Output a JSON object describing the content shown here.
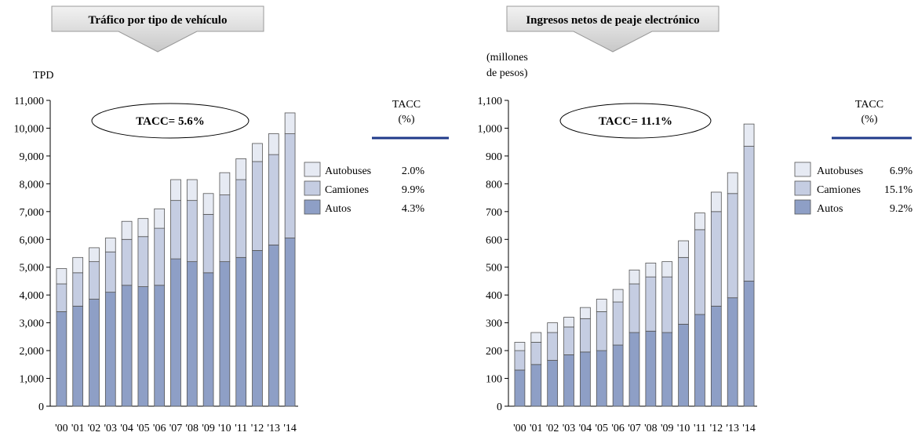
{
  "colors": {
    "autos": "#8e9fc6",
    "camiones": "#c5cde2",
    "autobuses": "#e6eaf3",
    "rule": "#1f3a8a",
    "banner_top": "#f2f2f2",
    "banner_bottom": "#c8c8c8"
  },
  "chart_data": [
    {
      "type": "bar",
      "stacked": true,
      "title": "Tráfico por tipo de vehículo",
      "ylabel": "TPD",
      "ylim": [
        0,
        11000
      ],
      "yticks": [
        "0",
        "1,000",
        "2,000",
        "3,000",
        "4,000",
        "5,000",
        "6,000",
        "7,000",
        "8,000",
        "9,000",
        "10,000",
        "11,000"
      ],
      "categories": [
        "'00",
        "'01",
        "'02",
        "'03",
        "'04",
        "'05",
        "'06",
        "'07",
        "'08",
        "'09",
        "'10",
        "'11",
        "'12",
        "'13",
        "'14"
      ],
      "series": [
        {
          "name": "Autos",
          "tacc": "4.3%",
          "values": [
            3400,
            3600,
            3850,
            4100,
            4350,
            4300,
            4350,
            5300,
            5200,
            4800,
            5200,
            5350,
            5600,
            5800,
            6050
          ]
        },
        {
          "name": "Camiones",
          "tacc": "9.9%",
          "values": [
            1000,
            1200,
            1350,
            1450,
            1650,
            1800,
            2050,
            2100,
            2200,
            2100,
            2400,
            2800,
            3200,
            3250,
            3750
          ]
        },
        {
          "name": "Autobuses",
          "tacc": "2.0%",
          "values": [
            550,
            550,
            500,
            500,
            650,
            650,
            700,
            750,
            750,
            750,
            800,
            750,
            650,
            750,
            750
          ]
        }
      ],
      "tacc_total": "TACC= 5.6%",
      "tacc_header": [
        "TACC",
        "(%)"
      ],
      "legend_order": [
        "Autobuses",
        "Camiones",
        "Autos"
      ]
    },
    {
      "type": "bar",
      "stacked": true,
      "title": "Ingresos netos de peaje electrónico",
      "ylabel": [
        "(millones",
        "de pesos)"
      ],
      "ylim": [
        0,
        1100
      ],
      "yticks": [
        "0",
        "100",
        "200",
        "300",
        "400",
        "500",
        "600",
        "700",
        "800",
        "900",
        "1,000",
        "1,100"
      ],
      "categories": [
        "'00",
        "'01",
        "'02",
        "'03",
        "'04",
        "'05",
        "'06",
        "'07",
        "'08",
        "'09",
        "'10",
        "'11",
        "'12",
        "'13",
        "'14"
      ],
      "series": [
        {
          "name": "Autos",
          "tacc": "9.2%",
          "values": [
            130,
            150,
            165,
            185,
            195,
            200,
            220,
            265,
            270,
            265,
            295,
            330,
            360,
            390,
            450
          ]
        },
        {
          "name": "Camiones",
          "tacc": "15.1%",
          "values": [
            70,
            80,
            100,
            100,
            120,
            140,
            155,
            175,
            195,
            200,
            240,
            305,
            340,
            375,
            485
          ]
        },
        {
          "name": "Autobuses",
          "tacc": "6.9%",
          "values": [
            30,
            35,
            35,
            35,
            40,
            45,
            45,
            50,
            50,
            55,
            60,
            60,
            70,
            75,
            80
          ]
        }
      ],
      "tacc_total": "TACC= 11.1%",
      "tacc_header": [
        "TACC",
        "(%)"
      ],
      "legend_order": [
        "Autobuses",
        "Camiones",
        "Autos"
      ]
    }
  ]
}
